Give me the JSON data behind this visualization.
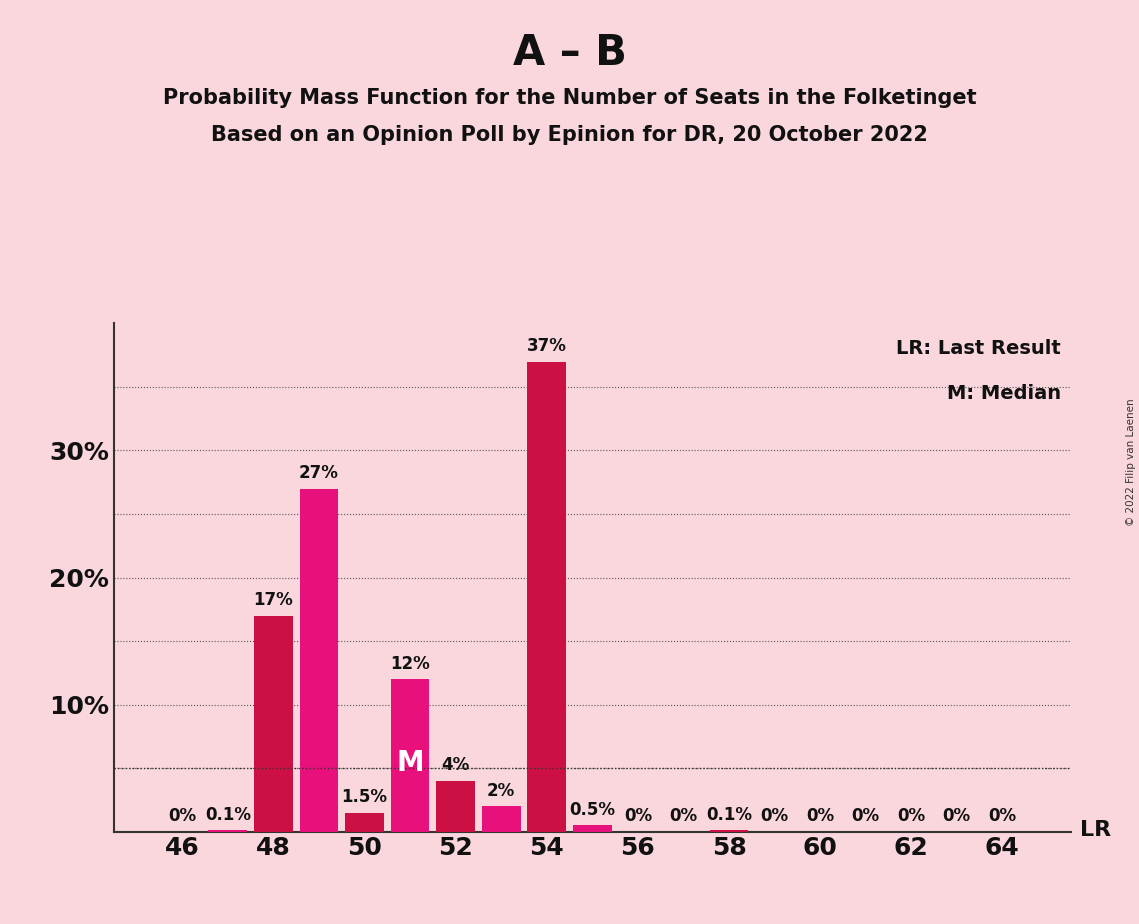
{
  "title_line1": "A – B",
  "title_line2": "Probability Mass Function for the Number of Seats in the Folketinget",
  "title_line3": "Based on an Opinion Poll by Epinion for DR, 20 October 2022",
  "background_color": "#F9D7DC",
  "plot_bg_color": "#F9D7DC",
  "seats": [
    46,
    47,
    48,
    49,
    50,
    51,
    52,
    53,
    54,
    55,
    56,
    57,
    58,
    59,
    60,
    61,
    62,
    63,
    64
  ],
  "values": [
    0.0,
    0.1,
    17.0,
    27.0,
    1.5,
    12.0,
    4.0,
    2.0,
    37.0,
    0.5,
    0.0,
    0.0,
    0.1,
    0.0,
    0.0,
    0.0,
    0.0,
    0.0,
    0.0
  ],
  "bar_labels": [
    "0%",
    "0.1%",
    "17%",
    "27%",
    "1.5%",
    "12%",
    "4%",
    "2%",
    "37%",
    "0.5%",
    "0%",
    "0%",
    "0.1%",
    "0%",
    "0%",
    "0%",
    "0%",
    "0%",
    "0%"
  ],
  "color_even": "#CC1044",
  "color_odd": "#E8107A",
  "lr_value": 5.0,
  "median_seat": 51,
  "xlim": [
    44.5,
    65.5
  ],
  "ylim": [
    0,
    40
  ],
  "xticks": [
    46,
    48,
    50,
    52,
    54,
    56,
    58,
    60,
    62,
    64
  ],
  "ytick_positions": [
    10,
    20,
    30
  ],
  "ytick_labels": [
    "10%",
    "20%",
    "30%"
  ],
  "grid_lines": [
    5,
    10,
    15,
    20,
    25,
    30,
    35
  ],
  "copyright_text": "© 2022 Filip van Laenen",
  "lr_label": "LR",
  "lr_legend": "LR: Last Result",
  "m_legend": "M: Median",
  "bar_width": 0.85
}
